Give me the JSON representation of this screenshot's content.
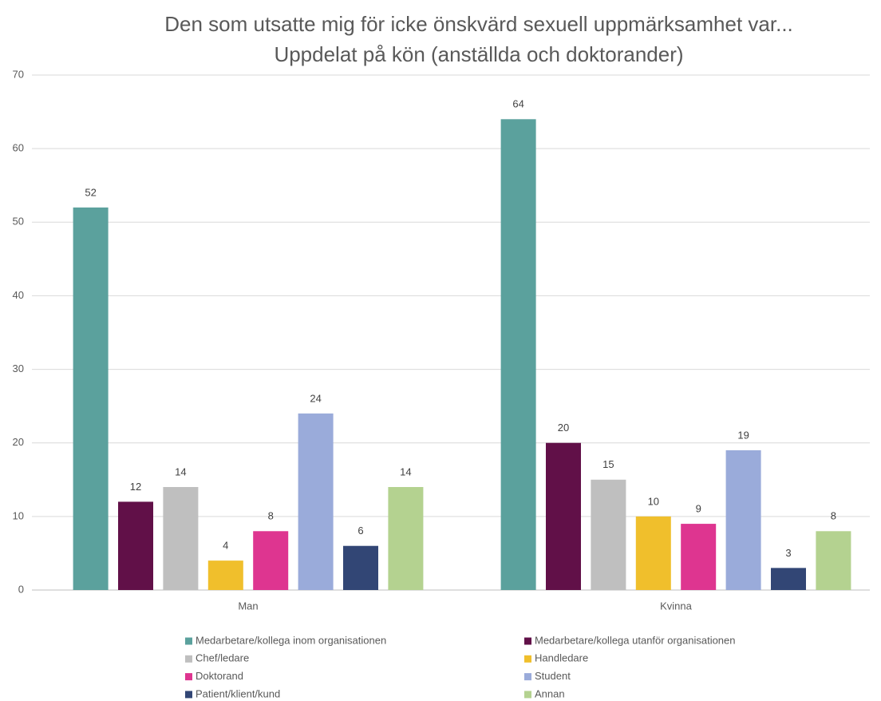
{
  "chart_data": {
    "type": "bar",
    "title": "Den som utsatte mig för icke önskvärd sexuell uppmärksamhet var...",
    "subtitle": "Uppdelat på kön  (anställda och doktorander)",
    "categories": [
      "Man",
      "Kvinna"
    ],
    "series": [
      {
        "name": "Medarbetare/kollega inom organisationen",
        "color": "#5ba19d",
        "values": [
          52,
          64
        ]
      },
      {
        "name": "Medarbetare/kollega utanför organisationen",
        "color": "#611048",
        "values": [
          12,
          20
        ]
      },
      {
        "name": "Chef/ledare",
        "color": "#bfbfbf",
        "values": [
          14,
          15
        ]
      },
      {
        "name": "Handledare",
        "color": "#f0bf2c",
        "values": [
          4,
          10
        ]
      },
      {
        "name": "Doktorand",
        "color": "#de3590",
        "values": [
          8,
          9
        ]
      },
      {
        "name": "Student",
        "color": "#9aabda",
        "values": [
          24,
          19
        ]
      },
      {
        "name": "Patient/klient/kund",
        "color": "#324675",
        "values": [
          6,
          3
        ]
      },
      {
        "name": "Annan",
        "color": "#b4d290",
        "values": [
          14,
          8
        ]
      }
    ],
    "ylim": [
      0,
      70
    ],
    "yticks": [
      0,
      10,
      20,
      30,
      40,
      50,
      60,
      70
    ],
    "grid": true,
    "legend": "bottom"
  }
}
